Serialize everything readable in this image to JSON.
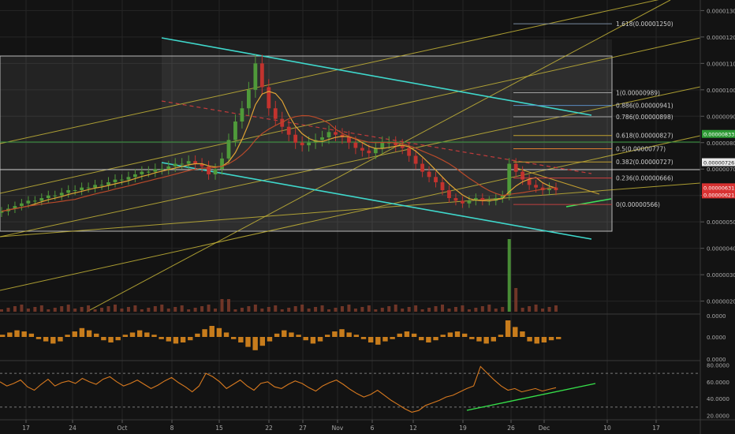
{
  "chart_data": {
    "type": "candlestick",
    "title": "",
    "colors": {
      "background": "#131313",
      "grid": "#262626",
      "axis_text": "#a9a9a9",
      "candle_up": "#4f9a3a",
      "candle_down": "#c2332e",
      "channel_line": "#3fd8cc",
      "pitchfork_line": "#c5b437",
      "fib_box": "#b8b8b8",
      "ma_fast": "#e0a434",
      "ma_slow": "#b94a2a",
      "dashed_ma": "#c23b3b",
      "support_line": "#3fe05a",
      "histogram": "#c77c1c",
      "rsi_line": "#d7791f",
      "rsi_trend": "#36e04a"
    },
    "x_axis": {
      "ticks": [
        "17",
        "24",
        "Oct",
        "8",
        "15",
        "22",
        "27",
        "Nov",
        "6",
        "12",
        "19",
        "26",
        "Dec",
        "10",
        "17"
      ]
    },
    "price_axis": {
      "ticks": [
        "0.00001300",
        "0.00001200",
        "0.00001100",
        "0.00001000",
        "0.00000900",
        "0.00000800",
        "0.00000700",
        "0.00000600",
        "0.00000500",
        "0.00000400",
        "0.00000300",
        "0.00000200"
      ],
      "ylim": [
        1.6e-06,
        1.34e-05
      ],
      "markers": [
        {
          "label": "0.00000833",
          "value": 8.33e-06,
          "bg": "#2d9a34",
          "fg": "#ffffff"
        },
        {
          "label": "0.00000726",
          "value": 7.26e-06,
          "bg": "#e9e9e9",
          "fg": "#1a1a1a"
        },
        {
          "label": "0.00000631",
          "value": 6.31e-06,
          "bg": "#d83232",
          "fg": "#ffffff"
        },
        {
          "label": "0.00000621 +8",
          "value": 6.04e-06,
          "bg": "#d83232",
          "fg": "#ffffff"
        }
      ]
    },
    "fib_levels": [
      {
        "label": "1.618(0.00001250)",
        "value": 1.25e-05,
        "color": "#7a8aa0"
      },
      {
        "label": "1(0.00000989)",
        "value": 9.89e-06,
        "color": "#a0a0a0"
      },
      {
        "label": "0.886(0.00000941)",
        "value": 9.41e-06,
        "color": "#5a8ac0"
      },
      {
        "label": "0.786(0.00000898)",
        "value": 8.98e-06,
        "color": "#a0a0a0"
      },
      {
        "label": "0.618(0.00000827)",
        "value": 8.27e-06,
        "color": "#c0a030"
      },
      {
        "label": "0.5(0.00000777)",
        "value": 7.77e-06,
        "color": "#e08030"
      },
      {
        "label": "0.382(0.00000727)",
        "value": 7.27e-06,
        "color": "#c0a030"
      },
      {
        "label": "0.236(0.00000666)",
        "value": 6.66e-06,
        "color": "#d04040"
      },
      {
        "label": "0(0.00000566)",
        "value": 5.66e-06,
        "color": "#c04040"
      }
    ],
    "series": [
      {
        "name": "price",
        "values": [
          5.4e-06,
          5.5e-06,
          5.6e-06,
          5.7e-06,
          5.8e-06,
          5.8e-06,
          5.9e-06,
          6e-06,
          6e-06,
          6.1e-06,
          6.2e-06,
          6.2e-06,
          6.3e-06,
          6.3e-06,
          6.4e-06,
          6.4e-06,
          6.5e-06,
          6.6e-06,
          6.6e-06,
          6.7e-06,
          6.8e-06,
          6.9e-06,
          6.9e-06,
          7e-06,
          7e-06,
          7.1e-06,
          7.2e-06,
          7.2e-06,
          7.3e-06,
          7.2e-06,
          7.1e-06,
          6.8e-06,
          7e-06,
          7.4e-06,
          8.1e-06,
          8.8e-06,
          9.3e-06,
          1e-05,
          1.1e-05,
          1.01e-05,
          9.3e-06,
          8.9e-06,
          8.6e-06,
          8.3e-06,
          8e-06,
          7.9e-06,
          8e-06,
          8.1e-06,
          8.2e-06,
          8.4e-06,
          8.3e-06,
          8.2e-06,
          8e-06,
          7.8e-06,
          7.7e-06,
          7.6e-06,
          7.8e-06,
          8e-06,
          8e-06,
          7.9e-06,
          7.8e-06,
          7.5e-06,
          7.2e-06,
          6.9e-06,
          6.7e-06,
          6.5e-06,
          6.2e-06,
          5.9e-06,
          5.8e-06,
          5.7e-06,
          5.8e-06,
          5.9e-06,
          5.8e-06,
          5.8e-06,
          5.9e-06,
          6e-06,
          7.2e-06,
          6.9e-06,
          6.6e-06,
          6.4e-06,
          6.3e-06,
          6.2e-06,
          6.3e-06,
          6.2e-06
        ]
      },
      {
        "name": "histogram",
        "values": [
          0.2,
          0.4,
          0.6,
          0.5,
          0.3,
          -0.2,
          -0.4,
          -0.6,
          -0.4,
          0.2,
          0.5,
          0.8,
          0.6,
          0.3,
          -0.3,
          -0.5,
          -0.3,
          0.2,
          0.4,
          0.6,
          0.4,
          0.2,
          -0.2,
          -0.4,
          -0.6,
          -0.5,
          -0.3,
          0.3,
          0.7,
          1.0,
          0.8,
          0.4,
          -0.2,
          -0.5,
          -0.9,
          -1.2,
          -0.8,
          -0.4,
          0.3,
          0.6,
          0.4,
          0.2,
          -0.3,
          -0.6,
          -0.4,
          0.2,
          0.5,
          0.7,
          0.4,
          0.2,
          -0.2,
          -0.5,
          -0.7,
          -0.4,
          -0.2,
          0.3,
          0.5,
          0.3,
          -0.3,
          -0.5,
          -0.3,
          0.2,
          0.4,
          0.5,
          0.3,
          -0.2,
          -0.4,
          -0.6,
          -0.4,
          0.2,
          1.5,
          0.9,
          0.5,
          -0.4,
          -0.6,
          -0.5,
          -0.3,
          -0.2
        ]
      },
      {
        "name": "rsi",
        "values": [
          60,
          55,
          58,
          62,
          54,
          50,
          57,
          63,
          55,
          59,
          61,
          58,
          64,
          60,
          57,
          63,
          66,
          60,
          55,
          58,
          62,
          57,
          52,
          56,
          61,
          65,
          59,
          54,
          48,
          55,
          70,
          66,
          60,
          52,
          57,
          62,
          55,
          50,
          58,
          60,
          54,
          52,
          57,
          61,
          58,
          53,
          49,
          55,
          59,
          62,
          57,
          51,
          46,
          42,
          45,
          50,
          44,
          38,
          33,
          28,
          24,
          26,
          32,
          35,
          38,
          42,
          44,
          48,
          52,
          55,
          78,
          70,
          62,
          55,
          50,
          52,
          48,
          50,
          52,
          49,
          51,
          53
        ]
      }
    ],
    "rsi_axis": {
      "ticks": [
        "80.0000",
        "60.0000",
        "40.0000",
        "20.0000"
      ],
      "ylim": [
        15,
        85
      ]
    },
    "histogram_axis": {
      "ticks": [
        "0.0000",
        "0.0000",
        "0.0000"
      ]
    }
  }
}
